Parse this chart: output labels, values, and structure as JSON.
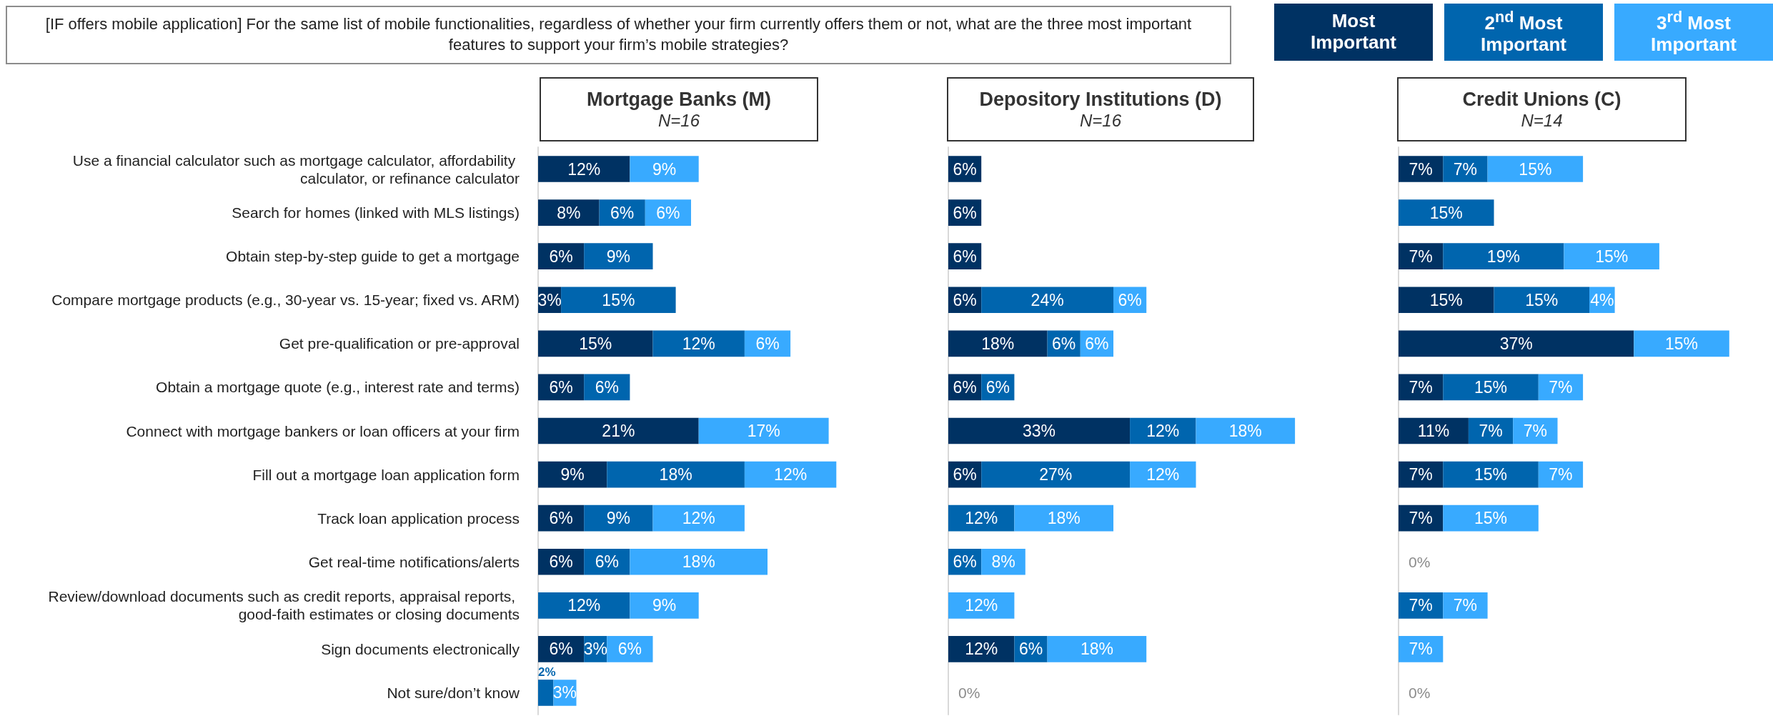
{
  "chart_data": [
    {
      "type": "bar",
      "orientation": "horizontal",
      "stacked": true,
      "title": "Mortgage Banks (M)",
      "subtitle": "N=16",
      "annotations": [
        "[IF offers mobile application] For the same list of mobile functionalities, regardless of whether your firm currently offers them or not, what are the three most important features to support your firm’s mobile strategies?"
      ],
      "legend": "top right",
      "tick_labels": "y",
      "categories": [
        "Use a financial calculator such as mortgage calculator, affordability calculator, or refinance calculator",
        "Search for homes (linked with MLS listings)",
        "Obtain step-by-step guide to get a mortgage",
        "Compare mortgage products (e.g., 30-year vs. 15-year; fixed vs. ARM)",
        "Get pre-qualification or pre-approval",
        "Obtain a mortgage quote (e.g., interest rate and terms)",
        "Connect with mortgage bankers or loan officers at your firm",
        "Fill out a mortgage loan application form",
        "Track loan application process",
        "Get real-time notifications/alerts",
        "Review/download documents such as credit reports, appraisal reports, good-faith estimates or closing documents",
        "Sign documents electronically",
        "Not sure/don’t know"
      ],
      "series": [
        {
          "name": "Most Important",
          "color": "#003263",
          "values": [
            12,
            8,
            6,
            3,
            15,
            6,
            21,
            9,
            6,
            6,
            null,
            6,
            null
          ],
          "value_labels": [
            "12%",
            "8%",
            "6%",
            "3%",
            "15%",
            "6%",
            "21%",
            "9%",
            "6%",
            "6%",
            null,
            "6%",
            null
          ]
        },
        {
          "name": "2$^{nd}$ Most Important",
          "color": "#0065ae",
          "values": [
            null,
            6,
            9,
            15,
            12,
            6,
            null,
            18,
            9,
            6,
            12,
            3,
            2
          ],
          "value_labels": [
            null,
            "6%",
            "9%",
            "15%",
            "12%",
            "6%",
            null,
            "18%",
            "9%",
            "6%",
            "12%",
            "3%",
            "2%"
          ]
        },
        {
          "name": "3$^{rd}$ Most Important",
          "color": "#38aaff",
          "values": [
            9,
            6,
            null,
            null,
            6,
            null,
            17,
            12,
            12,
            18,
            9,
            6,
            3
          ],
          "value_labels": [
            "9%",
            "6%",
            null,
            null,
            "6%",
            null,
            "17%",
            "12%",
            "12%",
            "18%",
            "9%",
            "6%",
            "3%"
          ]
        }
      ]
    },
    {
      "type": "bar",
      "orientation": "horizontal",
      "stacked": true,
      "title": "Depository Institutions (D)",
      "subtitle": "N=16",
      "tick_labels": false,
      "series": [
        {
          "color": "#003263",
          "values": [
            6,
            6,
            6,
            6,
            18,
            6,
            33,
            6,
            null,
            null,
            null,
            12,
            null
          ],
          "value_labels": [
            "6%",
            "6%",
            "6%",
            "6%",
            "18%",
            "6%",
            "33%",
            "6%",
            null,
            null,
            null,
            "12%",
            null
          ]
        },
        {
          "color": "#0065ae",
          "values": [
            null,
            null,
            null,
            24,
            6,
            6,
            12,
            27,
            12,
            6,
            null,
            6,
            null
          ],
          "value_labels": [
            null,
            null,
            null,
            "24%",
            "6%",
            "6%",
            "12%",
            "27%",
            "12%",
            "6%",
            null,
            "6%",
            null
          ]
        },
        {
          "color": "#38aaff",
          "values": [
            null,
            null,
            null,
            6,
            6,
            null,
            18,
            12,
            18,
            8,
            12,
            18,
            null
          ],
          "value_labels": [
            null,
            null,
            null,
            "6%",
            "6%",
            null,
            "18%",
            "12%",
            "18%",
            "8%",
            "12%",
            "18%",
            null
          ]
        }
      ],
      "totals": [
        null,
        null,
        null,
        null,
        null,
        null,
        null,
        null,
        null,
        null,
        null,
        null,
        "0%"
      ]
    },
    {
      "type": "bar",
      "orientation": "horizontal",
      "stacked": true,
      "title": "Credit Unions (C)",
      "subtitle": "N=14",
      "tick_labels": false,
      "series": [
        {
          "color": "#003263",
          "values": [
            7,
            null,
            7,
            15,
            37,
            7,
            11,
            7,
            7,
            null,
            null,
            null,
            null
          ],
          "value_labels": [
            "7%",
            null,
            "7%",
            "15%",
            "37%",
            "7%",
            "11%",
            "7%",
            "7%",
            null,
            null,
            null,
            null
          ]
        },
        {
          "color": "#0065ae",
          "values": [
            7,
            15,
            19,
            15,
            null,
            15,
            7,
            15,
            null,
            null,
            7,
            null,
            null
          ],
          "value_labels": [
            "7%",
            "15%",
            "19%",
            "15%",
            null,
            "15%",
            "7%",
            "15%",
            null,
            null,
            "7%",
            null,
            null
          ]
        },
        {
          "color": "#38aaff",
          "values": [
            15,
            null,
            15,
            4,
            15,
            7,
            7,
            7,
            15,
            null,
            7,
            7,
            null
          ],
          "value_labels": [
            "15%",
            null,
            "15%",
            "4%",
            "15%",
            "7%",
            "7%",
            "7%",
            "15%",
            null,
            "7%",
            "7%",
            null
          ]
        }
      ],
      "totals": [
        null,
        null,
        null,
        null,
        null,
        null,
        null,
        null,
        null,
        "0%",
        null,
        null,
        "0%"
      ]
    }
  ]
}
